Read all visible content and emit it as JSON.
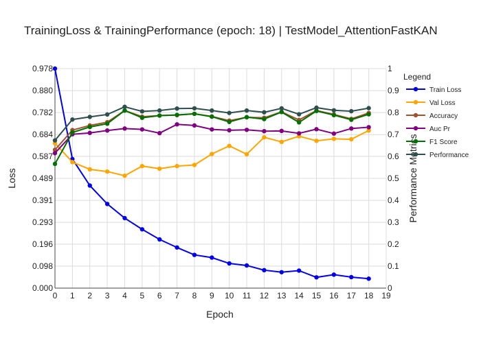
{
  "chart_data": {
    "type": "line",
    "title": "TrainingLoss & TrainingPerformance (epoch: 18) | TestModel_AttentionFastKAN",
    "xlabel": "Epoch",
    "ylabel_left": "Loss",
    "ylabel_right": "Performance Metrics",
    "legend_title": "Legend",
    "legend_position": "right",
    "grid": true,
    "x_range": [
      0,
      19
    ],
    "x_ticks": [
      "0",
      "1",
      "2",
      "3",
      "4",
      "5",
      "6",
      "7",
      "8",
      "9",
      "10",
      "11",
      "12",
      "13",
      "14",
      "15",
      "16",
      "17",
      "18",
      "19"
    ],
    "y_left_range": [
      0,
      0.978
    ],
    "y_left_ticks": [
      "0.000",
      "0.098",
      "0.196",
      "0.293",
      "0.391",
      "0.489",
      "0.587",
      "0.684",
      "0.782",
      "0.880",
      "0.978"
    ],
    "y_right_range": [
      0,
      1
    ],
    "y_right_ticks": [
      "0",
      "0.1",
      "0.2",
      "0.3",
      "0.4",
      "0.5",
      "0.6",
      "0.7",
      "0.8",
      "0.9",
      "1"
    ],
    "x": [
      0,
      1,
      2,
      3,
      4,
      5,
      6,
      7,
      8,
      9,
      10,
      11,
      12,
      13,
      14,
      15,
      16,
      17,
      18
    ],
    "series": [
      {
        "name": "Train Loss",
        "axis": "left",
        "color": "#0000ee",
        "values": [
          0.978,
          0.575,
          0.457,
          0.375,
          0.312,
          0.262,
          0.217,
          0.181,
          0.148,
          0.136,
          0.11,
          0.101,
          0.08,
          0.071,
          0.078,
          0.048,
          0.06,
          0.049,
          0.042
        ]
      },
      {
        "name": "Val Loss",
        "axis": "right",
        "color": "#ffa500",
        "values": [
          0.66,
          0.574,
          0.541,
          0.531,
          0.512,
          0.556,
          0.544,
          0.556,
          0.561,
          0.611,
          0.648,
          0.61,
          0.687,
          0.666,
          0.692,
          0.671,
          0.68,
          0.678,
          0.718
        ]
      },
      {
        "name": "Accuracy",
        "axis": "right",
        "color": "#a0522d",
        "values": [
          0.63,
          0.72,
          0.741,
          0.756,
          0.809,
          0.781,
          0.786,
          0.788,
          0.794,
          0.782,
          0.763,
          0.778,
          0.776,
          0.803,
          0.766,
          0.809,
          0.791,
          0.771,
          0.798
        ]
      },
      {
        "name": "Auc Pr",
        "axis": "right",
        "color": "#800080",
        "values": [
          0.615,
          0.701,
          0.707,
          0.718,
          0.727,
          0.723,
          0.706,
          0.746,
          0.741,
          0.723,
          0.719,
          0.721,
          0.715,
          0.716,
          0.705,
          0.724,
          0.704,
          0.727,
          0.733
        ]
      },
      {
        "name": "F1 Score",
        "axis": "right",
        "color": "#007000",
        "values": [
          0.566,
          0.709,
          0.734,
          0.749,
          0.809,
          0.776,
          0.786,
          0.789,
          0.794,
          0.781,
          0.757,
          0.779,
          0.77,
          0.802,
          0.755,
          0.807,
          0.788,
          0.767,
          0.792
        ]
      },
      {
        "name": "Performance",
        "axis": "right",
        "color": "#2f4f4f",
        "values": [
          0.673,
          0.768,
          0.78,
          0.791,
          0.826,
          0.805,
          0.809,
          0.818,
          0.819,
          0.809,
          0.798,
          0.809,
          0.801,
          0.819,
          0.792,
          0.822,
          0.81,
          0.806,
          0.82
        ]
      }
    ]
  }
}
